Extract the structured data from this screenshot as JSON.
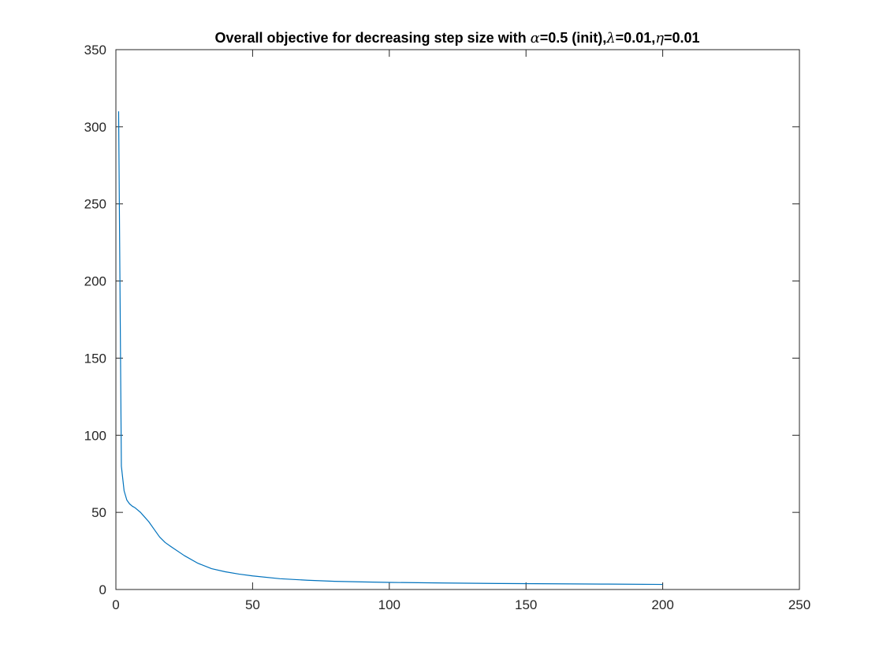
{
  "chart_data": {
    "type": "line",
    "title_parts": [
      {
        "text": "Overall objective for decreasing step size with ",
        "greek": false
      },
      {
        "text": "α",
        "greek": true
      },
      {
        "text": "=0.5 (init),",
        "greek": false
      },
      {
        "text": "λ",
        "greek": true
      },
      {
        "text": "=0.01,",
        "greek": false
      },
      {
        "text": "η",
        "greek": true
      },
      {
        "text": "=0.01",
        "greek": false
      }
    ],
    "xlabel": "",
    "ylabel": "",
    "xlim": [
      0,
      250
    ],
    "ylim": [
      0,
      350
    ],
    "xticks": [
      0,
      50,
      100,
      150,
      200,
      250
    ],
    "yticks": [
      0,
      50,
      100,
      150,
      200,
      250,
      300,
      350
    ],
    "grid": false,
    "line_color": "#0072BD",
    "series": [
      {
        "x": [
          1,
          2,
          3,
          4,
          5,
          6,
          7,
          8,
          9,
          10,
          12,
          14,
          16,
          18,
          20,
          25,
          30,
          35,
          40,
          45,
          50,
          60,
          70,
          80,
          90,
          100,
          120,
          140,
          160,
          180,
          200
        ],
        "y": [
          310,
          80,
          64,
          58,
          55.5,
          54,
          53,
          51.5,
          50,
          48,
          44,
          39,
          34,
          30.5,
          28,
          22,
          17,
          13.5,
          11.5,
          10,
          8.8,
          7,
          6,
          5.3,
          4.9,
          4.6,
          4.2,
          3.9,
          3.7,
          3.5,
          3.3
        ]
      }
    ]
  }
}
